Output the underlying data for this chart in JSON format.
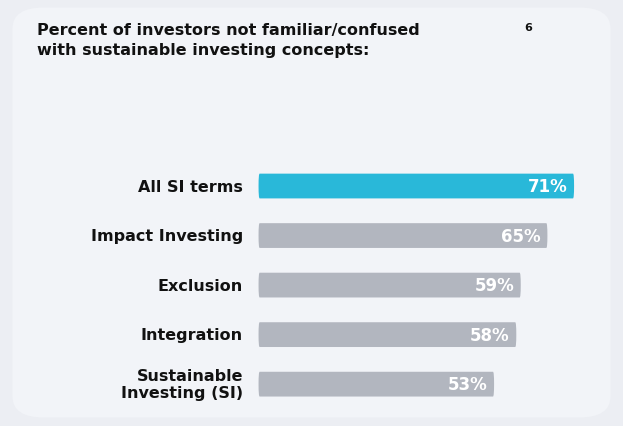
{
  "title_line1": "Percent of investors not familiar/confused",
  "title_line2": "with sustainable investing concepts:",
  "title_superscript": "6",
  "categories": [
    "All SI terms",
    "Impact Investing",
    "Exclusion",
    "Integration",
    "Sustainable\nInvesting (SI)"
  ],
  "values": [
    71,
    65,
    59,
    58,
    53
  ],
  "bar_colors": [
    "#29B8D9",
    "#B2B6BF",
    "#B2B6BF",
    "#B2B6BF",
    "#B2B6BF"
  ],
  "background_color": "#ECEEF3",
  "card_color": "#F0F2F5",
  "text_color": "#111111",
  "bar_max": 75,
  "title_fontsize": 11.5,
  "value_fontsize": 12,
  "category_fontsize": 11.5,
  "fig_width": 6.23,
  "fig_height": 4.27,
  "dpi": 100
}
